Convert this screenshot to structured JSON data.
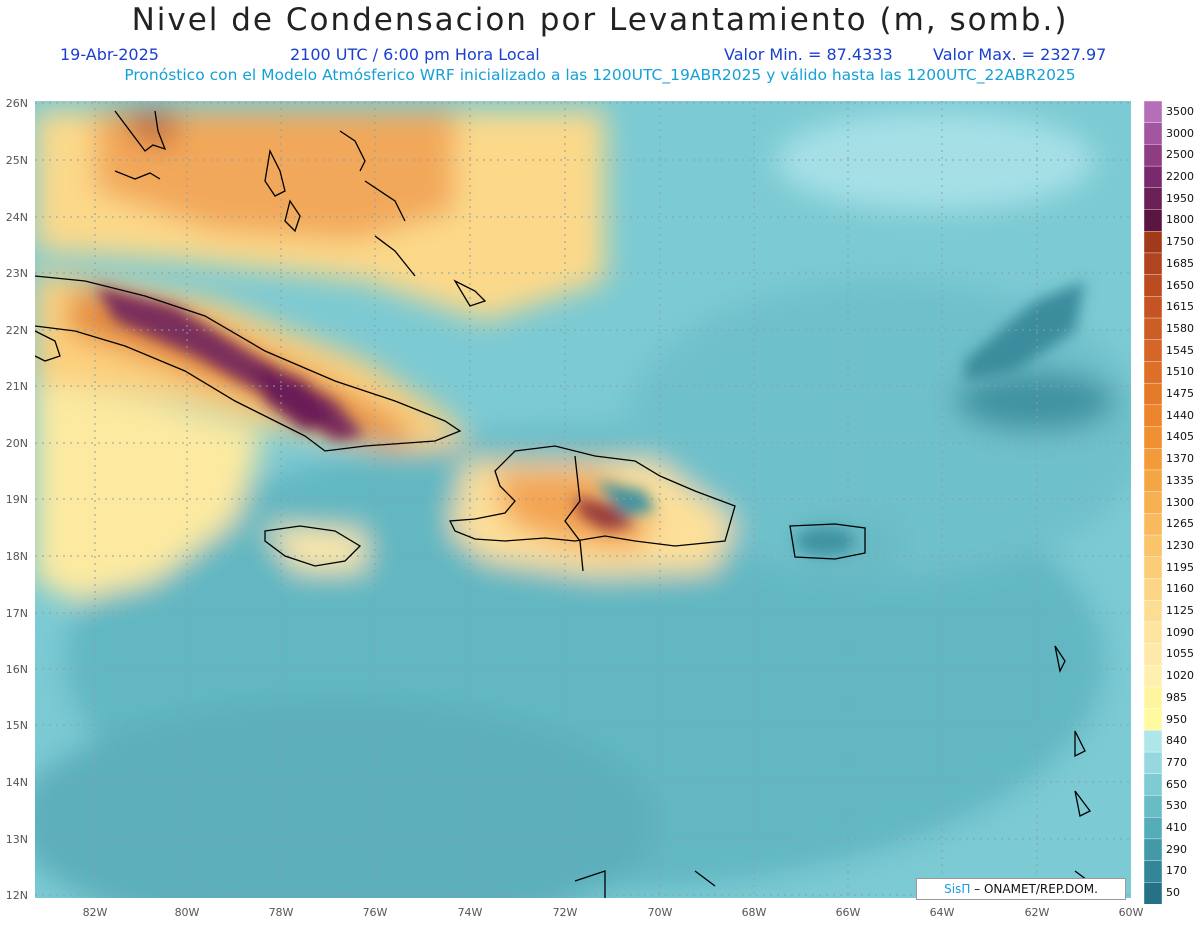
{
  "title": "Nivel de Condensacion por Levantamiento (m, somb.)",
  "date": "19-Abr-2025",
  "time": "2100 UTC / 6:00 pm Hora Local",
  "valor_min": "Valor Min. = 87.4333",
  "valor_max": "Valor Max. = 2327.97",
  "forecast_line": "Pronóstico con el Modelo Atmósferico WRF inicializado a las 1200UTC_19ABR2025 y válido hasta las  1200UTC_22ABR2025",
  "credit": {
    "sis": "SisΠ",
    "org": "– ONAMET/REP.DOM."
  },
  "lat_labels": [
    "26N",
    "25N",
    "24N",
    "23N",
    "22N",
    "21N",
    "20N",
    "19N",
    "18N",
    "17N",
    "16N",
    "15N",
    "14N",
    "13N",
    "12N"
  ],
  "lon_labels": [
    "82W",
    "80W",
    "78W",
    "76W",
    "74W",
    "72W",
    "70W",
    "68W",
    "66W",
    "64W",
    "62W",
    "60W"
  ],
  "colorbar": {
    "labels": [
      "3500",
      "3000",
      "2500",
      "2200",
      "1950",
      "1800",
      "1750",
      "1685",
      "1650",
      "1615",
      "1580",
      "1545",
      "1510",
      "1475",
      "1440",
      "1405",
      "1370",
      "1335",
      "1300",
      "1265",
      "1230",
      "1195",
      "1160",
      "1125",
      "1090",
      "1055",
      "1020",
      "985",
      "950",
      "840",
      "770",
      "650",
      "530",
      "410",
      "290",
      "170",
      "50"
    ],
    "colors": [
      "#b56fb8",
      "#a3569f",
      "#8e3d84",
      "#7a2a6c",
      "#6a1f56",
      "#5a1640",
      "#a23a1a",
      "#b14420",
      "#bb4c22",
      "#c45424",
      "#cd5d26",
      "#d56627",
      "#dd6f28",
      "#e57a2a",
      "#ec852d",
      "#f09033",
      "#f39b3a",
      "#f5a644",
      "#f7b04f",
      "#f8ba5c",
      "#f9c46a",
      "#fbcd78",
      "#fcd586",
      "#fddd93",
      "#fee4a0",
      "#fee9aa",
      "#fff0b0",
      "#fff5a0",
      "#fffaa0",
      "#aee6ea",
      "#96d8df",
      "#7ecbd3",
      "#68bcc6",
      "#54adb8",
      "#4399a7",
      "#338697",
      "#257286"
    ]
  }
}
